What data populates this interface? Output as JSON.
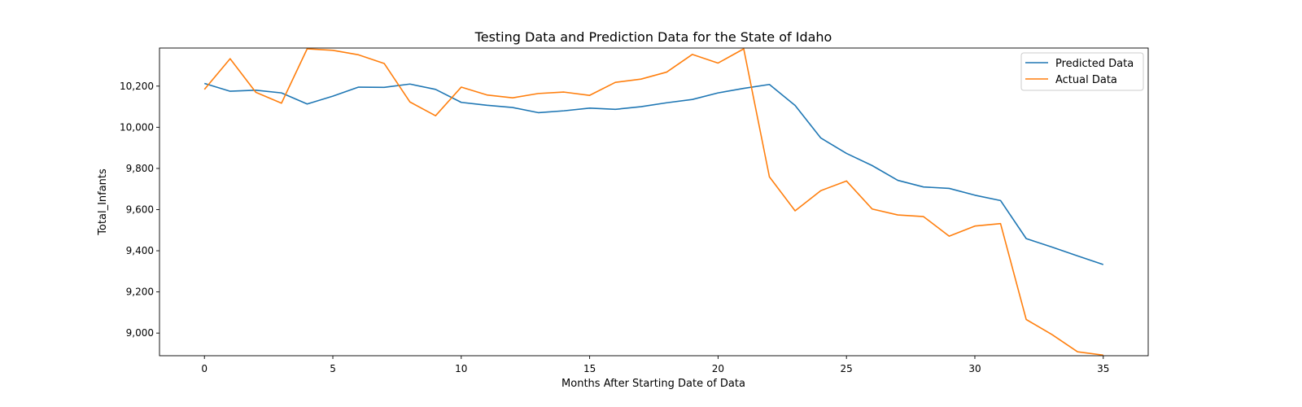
{
  "chart_data": {
    "type": "line",
    "title": "Testing Data and Prediction Data for the State of Idaho",
    "xlabel": "Months After Starting Date of Data",
    "ylabel": "Total_Infants",
    "xlim": [
      -1.75,
      36.75
    ],
    "ylim": [
      8890,
      10385
    ],
    "x_ticks": [
      0,
      5,
      10,
      15,
      20,
      25,
      30,
      35
    ],
    "y_ticks": [
      9000,
      9200,
      9400,
      9600,
      9800,
      10000,
      10200
    ],
    "legend_position": "top-right",
    "grid": false,
    "x": [
      0,
      1,
      2,
      3,
      4,
      5,
      6,
      7,
      8,
      9,
      10,
      11,
      12,
      13,
      14,
      15,
      16,
      17,
      18,
      19,
      20,
      21,
      22,
      23,
      24,
      25,
      26,
      27,
      28,
      29,
      30,
      31,
      32,
      33,
      34,
      35
    ],
    "series": [
      {
        "name": "Predicted Data",
        "color": "#1f77b4",
        "values": [
          10213,
          10175,
          10180,
          10167,
          10113,
          10151,
          10195,
          10194,
          10210,
          10184,
          10121,
          10107,
          10096,
          10071,
          10080,
          10093,
          10087,
          10100,
          10119,
          10135,
          10167,
          10189,
          10208,
          10106,
          9948,
          9873,
          9814,
          9742,
          9710,
          9703,
          9670,
          9644,
          9459,
          9418,
          9375,
          9333
        ]
      },
      {
        "name": "Actual Data",
        "color": "#ff7f0e",
        "values": [
          10184,
          10333,
          10170,
          10117,
          10381,
          10374,
          10352,
          10310,
          10123,
          10056,
          10195,
          10157,
          10143,
          10164,
          10171,
          10155,
          10218,
          10234,
          10268,
          10354,
          10312,
          10381,
          9759,
          9594,
          9692,
          9739,
          9603,
          9574,
          9566,
          9471,
          9520,
          9532,
          9066,
          8993,
          8909,
          8893
        ]
      }
    ]
  }
}
